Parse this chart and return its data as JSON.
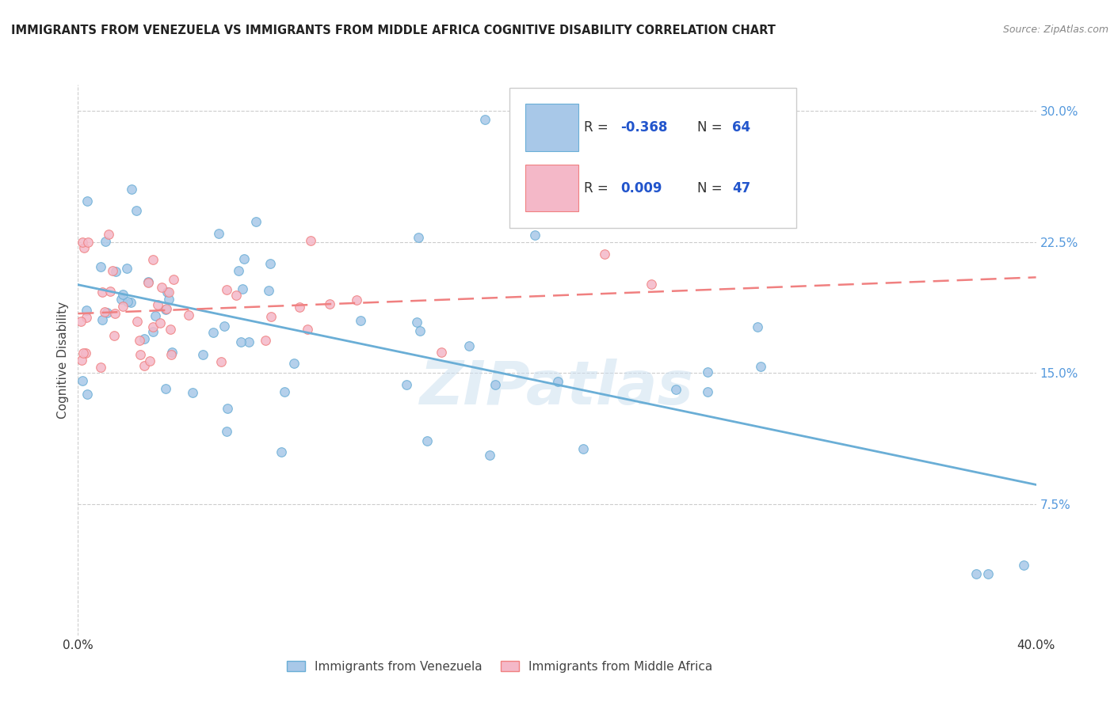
{
  "title": "IMMIGRANTS FROM VENEZUELA VS IMMIGRANTS FROM MIDDLE AFRICA COGNITIVE DISABILITY CORRELATION CHART",
  "source": "Source: ZipAtlas.com",
  "ylabel": "Cognitive Disability",
  "xlim": [
    0.0,
    0.4
  ],
  "ylim": [
    0.0,
    0.315
  ],
  "yticks": [
    0.075,
    0.15,
    0.225,
    0.3
  ],
  "ytick_labels": [
    "7.5%",
    "15.0%",
    "22.5%",
    "30.0%"
  ],
  "color_blue": "#a8c8e8",
  "color_pink": "#f4b8c8",
  "line_blue": "#6aaed6",
  "line_pink": "#f08080",
  "watermark": "ZIPatlas",
  "legend_r1_label": "R = ",
  "legend_r1_val": "-0.368",
  "legend_n1_label": "N = ",
  "legend_n1_val": "64",
  "legend_r2_label": "R = ",
  "legend_r2_val": "0.009",
  "legend_n2_label": "N = ",
  "legend_n2_val": "47",
  "legend_text_color": "#2255cc",
  "legend_label_color": "#333333",
  "title_color": "#222222",
  "source_color": "#888888",
  "ylabel_color": "#444444",
  "ytick_color": "#5599dd",
  "grid_color": "#cccccc",
  "bottom_legend1": "Immigrants from Venezuela",
  "bottom_legend2": "Immigrants from Middle Africa"
}
